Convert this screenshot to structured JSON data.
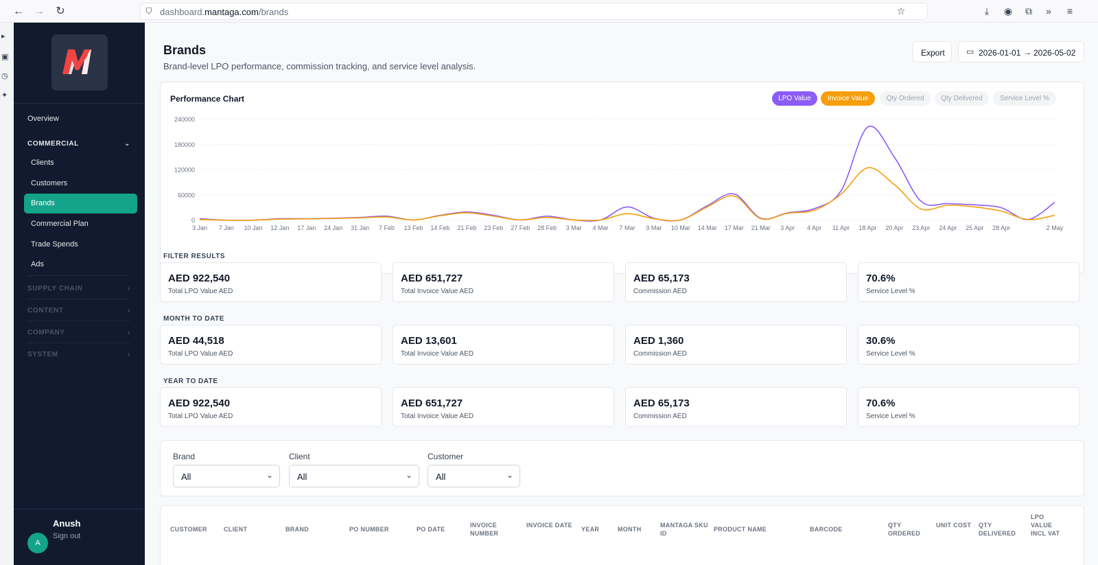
{
  "browser": {
    "url_prefix": "dashboard.",
    "url_domain": "mantaga.com",
    "url_path": "/brands"
  },
  "sidebar": {
    "logo_text": "M",
    "items": [
      {
        "label": "Overview"
      },
      {
        "label": "Clients"
      },
      {
        "label": "Customers"
      },
      {
        "label": "Brands"
      },
      {
        "label": "Commercial Plan"
      },
      {
        "label": "Trade Spends"
      },
      {
        "label": "Ads"
      }
    ],
    "sections": [
      "COMMERCIAL",
      "SUPPLY CHAIN",
      "CONTENT",
      "COMPANY",
      "SYSTEM"
    ],
    "user": {
      "initial": "A",
      "name": "Anush",
      "signout": "Sign out"
    }
  },
  "header": {
    "title": "Brands",
    "subtitle": "Brand-level LPO performance, commission tracking, and service level analysis.",
    "export_label": "Export",
    "date_from": "2026-01-01",
    "date_arrow": "→",
    "date_to": "2026-05-02"
  },
  "chart": {
    "title": "Performance Chart",
    "toggles": [
      {
        "label": "LPO Value",
        "active": true,
        "color": "#8b5cf6"
      },
      {
        "label": "Invoice Value",
        "active": true,
        "color": "#f59e0b"
      },
      {
        "label": "Qty Ordered",
        "active": false
      },
      {
        "label": "Qty Delivered",
        "active": false
      },
      {
        "label": "Service Level %",
        "active": false
      }
    ]
  },
  "chart_data": {
    "type": "line",
    "title": "Performance Chart",
    "xlabel": "",
    "ylabel": "",
    "ylim": [
      0,
      240000
    ],
    "yticks": [
      0,
      60000,
      120000,
      180000,
      240000
    ],
    "x": [
      "3 Jan",
      "7 Jan",
      "10 Jan",
      "12 Jan",
      "17 Jan",
      "24 Jan",
      "31 Jan",
      "7 Feb",
      "13 Feb",
      "14 Feb",
      "21 Feb",
      "23 Feb",
      "27 Feb",
      "28 Feb",
      "3 Mar",
      "4 Mar",
      "7 Mar",
      "9 Mar",
      "10 Mar",
      "14 Mar",
      "17 Mar",
      "21 Mar",
      "3 Apr",
      "4 Apr",
      "11 Apr",
      "18 Apr",
      "20 Apr",
      "23 Apr",
      "24 Apr",
      "25 Apr",
      "28 Apr",
      "",
      "2 May"
    ],
    "series": [
      {
        "name": "LPO Value",
        "color": "#8b5cf6",
        "values": [
          4000,
          500,
          500,
          4000,
          4000,
          5000,
          7000,
          10000,
          1000,
          12000,
          20000,
          12000,
          1000,
          10000,
          1000,
          1000,
          32000,
          5000,
          1000,
          35000,
          63000,
          5000,
          18000,
          28000,
          70000,
          222000,
          150000,
          45000,
          40000,
          37000,
          30000,
          2000,
          43000
        ]
      },
      {
        "name": "Invoice Value",
        "color": "#f59e0b",
        "values": [
          2000,
          500,
          500,
          3000,
          3500,
          4500,
          6000,
          8000,
          1000,
          11000,
          18000,
          10000,
          1000,
          7000,
          1000,
          1000,
          16000,
          4000,
          1000,
          32000,
          58000,
          4000,
          17000,
          24000,
          62000,
          125000,
          85000,
          27000,
          36000,
          32000,
          22000,
          2000,
          12000
        ]
      }
    ],
    "grid": true,
    "legend": "top-right"
  },
  "sections": [
    {
      "label": "FILTER RESULTS",
      "kpis": [
        {
          "value": "AED 922,540",
          "label": "Total LPO Value AED"
        },
        {
          "value": "AED 651,727",
          "label": "Total Invoice Value AED"
        },
        {
          "value": "AED 65,173",
          "label": "Commission AED"
        },
        {
          "value": "70.6%",
          "label": "Service Level %"
        }
      ]
    },
    {
      "label": "MONTH TO DATE",
      "kpis": [
        {
          "value": "AED 44,518",
          "label": "Total LPO Value AED"
        },
        {
          "value": "AED 13,601",
          "label": "Total Invoice Value AED"
        },
        {
          "value": "AED 1,360",
          "label": "Commission AED"
        },
        {
          "value": "30.6%",
          "label": "Service Level %"
        }
      ]
    },
    {
      "label": "YEAR TO DATE",
      "kpis": [
        {
          "value": "AED 922,540",
          "label": "Total LPO Value AED"
        },
        {
          "value": "AED 651,727",
          "label": "Total Invoice Value AED"
        },
        {
          "value": "AED 65,173",
          "label": "Commission AED"
        },
        {
          "value": "70.6%",
          "label": "Service Level %"
        }
      ]
    }
  ],
  "filters": [
    {
      "label": "Brand",
      "value": "All"
    },
    {
      "label": "Client",
      "value": "All"
    },
    {
      "label": "Customer",
      "value": "All"
    }
  ],
  "table": {
    "headers": [
      "CUSTOMER",
      "CLIENT",
      "BRAND",
      "PO NUMBER",
      "PO DATE",
      "INVOICE NUMBER",
      "INVOICE DATE",
      "YEAR",
      "MONTH",
      "MANTAGA SKU ID",
      "PRODUCT NAME",
      "BARCODE",
      "QTY ORDERED",
      "UNIT COST",
      "QTY DELIVERED",
      "LPO VALUE INCL VAT"
    ]
  }
}
